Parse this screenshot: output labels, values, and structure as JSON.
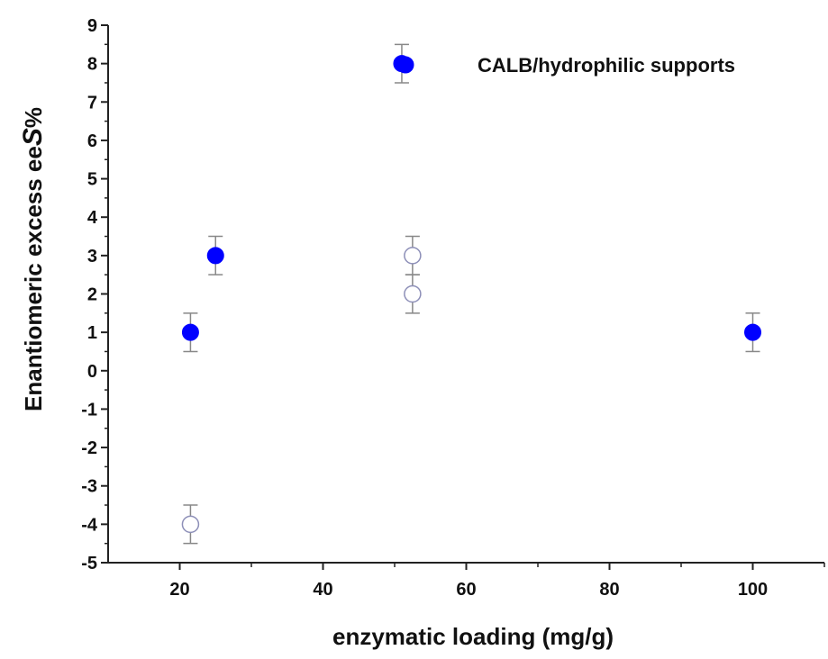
{
  "chart_data": {
    "type": "scatter",
    "xlabel": "enzymatic loading (mg/g)",
    "ylabel_main": "Enantiomeric excess ee",
    "ylabel_italic": "S",
    "ylabel_suffix": "%",
    "xlim": [
      10,
      110
    ],
    "ylim": [
      -5,
      9
    ],
    "xticks": [
      20,
      40,
      60,
      80,
      100
    ],
    "yticks": [
      -5,
      -4,
      -3,
      -2,
      -1,
      0,
      1,
      2,
      3,
      4,
      5,
      6,
      7,
      8,
      9
    ],
    "grid": false,
    "legend_position": "top-right",
    "series": [
      {
        "name": "CALB/hydrophilic supports",
        "marker": "filled-circle",
        "color": "#0000ff",
        "points": [
          {
            "x": 21.5,
            "y": 1,
            "err": 0.5
          },
          {
            "x": 25,
            "y": 3,
            "err": 0.5
          },
          {
            "x": 51,
            "y": 8,
            "err": 0.5
          },
          {
            "x": 100,
            "y": 1,
            "err": 0.5
          }
        ]
      },
      {
        "marker": "open-circle",
        "color": "#8d8fb8",
        "points": [
          {
            "x": 21.5,
            "y": -4,
            "err": 0.5
          },
          {
            "x": 52.5,
            "y": 3,
            "err": 0.5
          },
          {
            "x": 52.5,
            "y": 2,
            "err": 0.5
          }
        ]
      }
    ]
  }
}
